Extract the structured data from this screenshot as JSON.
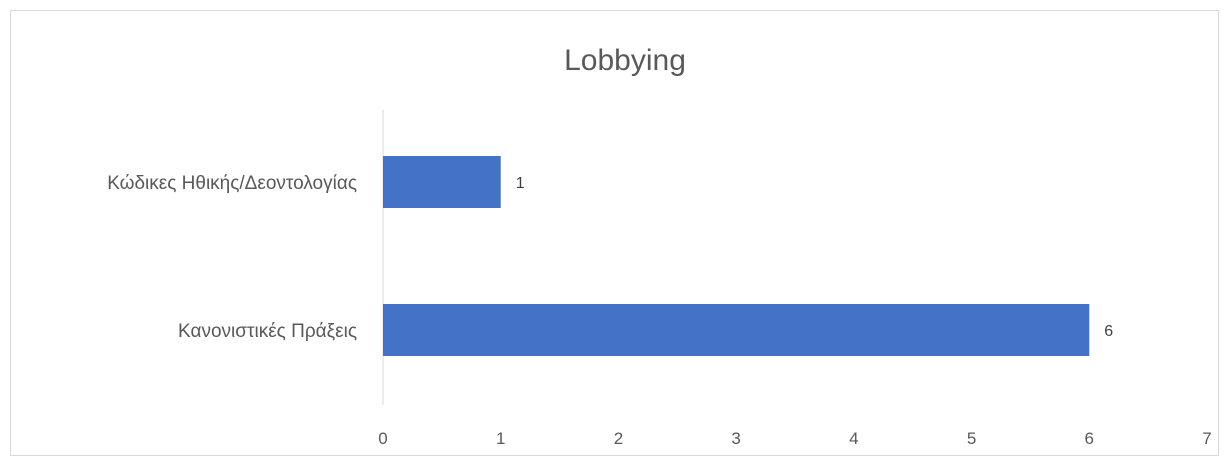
{
  "chart_data": {
    "type": "bar",
    "orientation": "horizontal",
    "title": "Lobbying",
    "categories": [
      "Κώδικες Ηθικής/Δεοντολογίας",
      "Κανονιστικές Πράξεις"
    ],
    "values": [
      1,
      6
    ],
    "data_labels": [
      "1",
      "6"
    ],
    "xlim": [
      0,
      7
    ],
    "x_ticks": [
      "0",
      "1",
      "2",
      "3",
      "4",
      "5",
      "6",
      "7"
    ],
    "xlabel": "",
    "ylabel": "",
    "grid": false,
    "legend": false,
    "bar_color": "#4472c4"
  }
}
